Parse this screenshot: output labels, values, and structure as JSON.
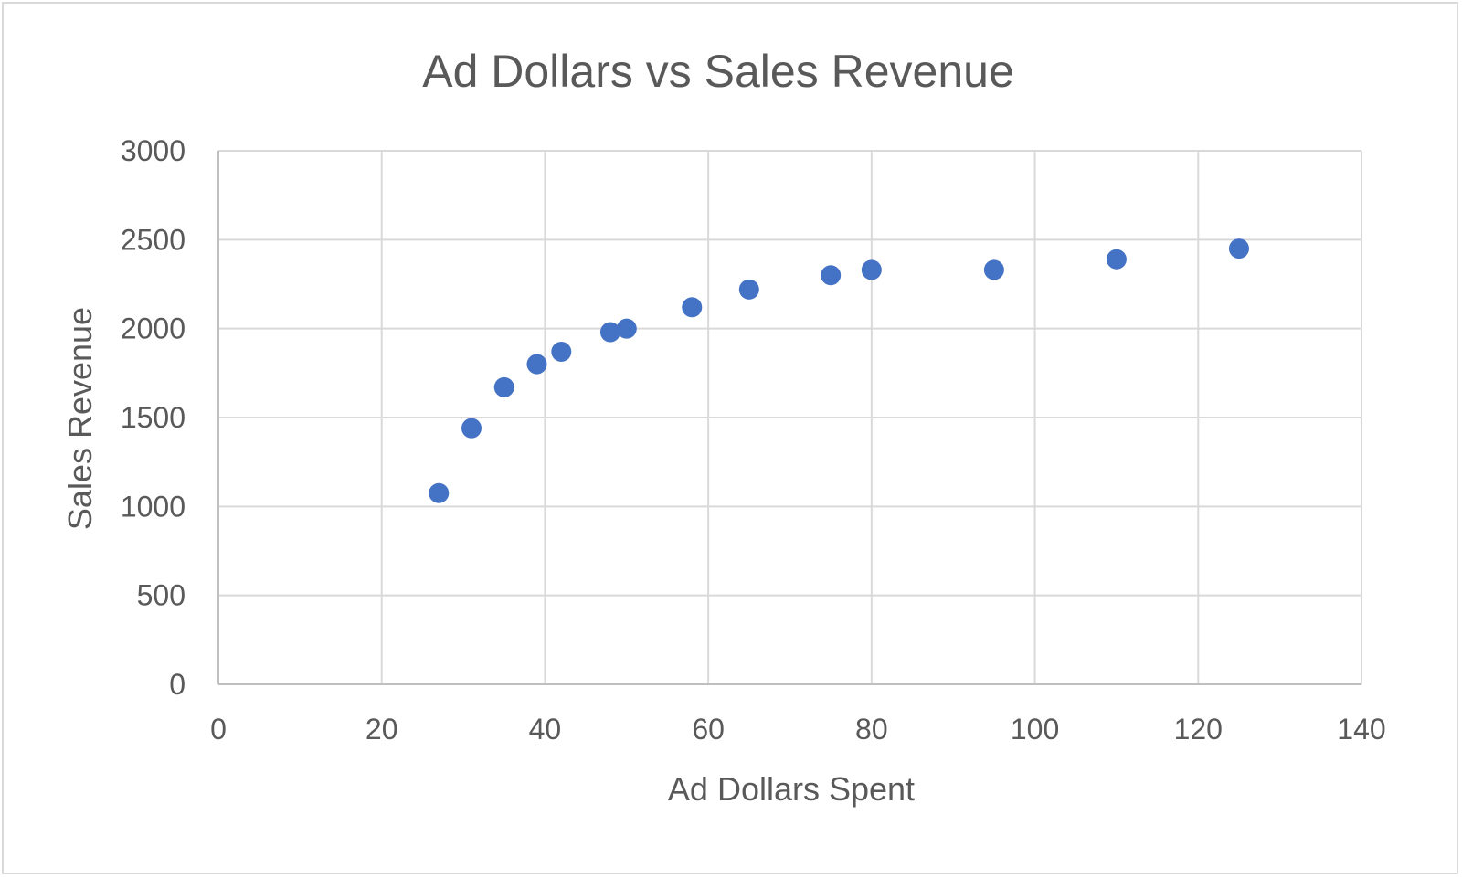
{
  "chart_data": {
    "type": "scatter",
    "title": "Ad Dollars vs Sales Revenue",
    "xlabel": "Ad Dollars Spent",
    "ylabel": "Sales Revenue",
    "xlim": [
      0,
      140
    ],
    "ylim": [
      0,
      3000
    ],
    "xticks": [
      0,
      20,
      40,
      60,
      80,
      100,
      120,
      140
    ],
    "yticks": [
      0,
      500,
      1000,
      1500,
      2000,
      2500,
      3000
    ],
    "grid": true,
    "legend": "none",
    "marker_color": "#4472C4",
    "series": [
      {
        "points": [
          {
            "x": 27,
            "y": 1075
          },
          {
            "x": 31,
            "y": 1440
          },
          {
            "x": 35,
            "y": 1670
          },
          {
            "x": 39,
            "y": 1800
          },
          {
            "x": 42,
            "y": 1870
          },
          {
            "x": 48,
            "y": 1980
          },
          {
            "x": 50,
            "y": 2000
          },
          {
            "x": 58,
            "y": 2120
          },
          {
            "x": 65,
            "y": 2220
          },
          {
            "x": 75,
            "y": 2300
          },
          {
            "x": 80,
            "y": 2330
          },
          {
            "x": 95,
            "y": 2330
          },
          {
            "x": 110,
            "y": 2390
          },
          {
            "x": 125,
            "y": 2450
          }
        ]
      }
    ]
  }
}
